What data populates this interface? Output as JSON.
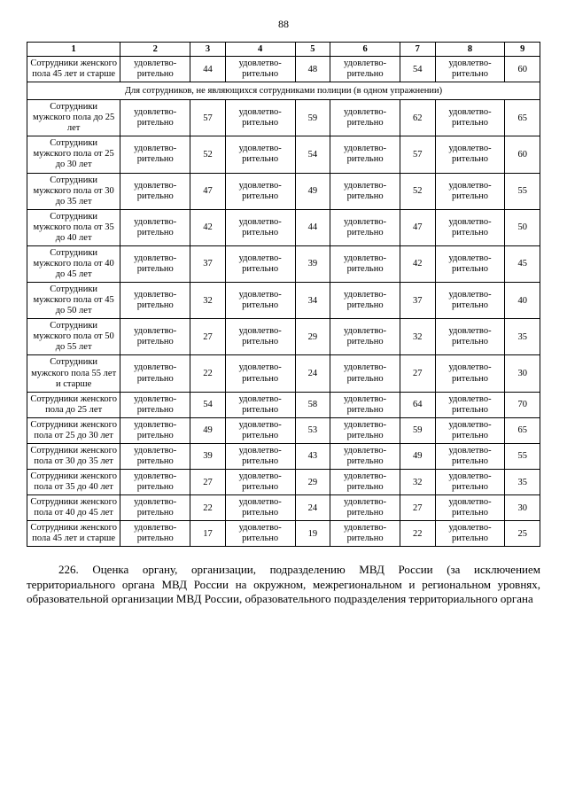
{
  "page_number": "88",
  "table": {
    "headers": [
      "1",
      "2",
      "3",
      "4",
      "5",
      "6",
      "7",
      "8",
      "9"
    ],
    "rating_word": "удовлетво-\nрительно",
    "top_row": {
      "category": "Сотрудники женского пола 45 лет и старше",
      "vals": [
        "44",
        "48",
        "54",
        "60"
      ]
    },
    "spanner": "Для сотрудников, не являющихся сотрудниками полиции (в одном упражнении)",
    "rows": [
      {
        "category": "Сотрудники мужского пола до 25 лет",
        "vals": [
          "57",
          "59",
          "62",
          "65"
        ]
      },
      {
        "category": "Сотрудники мужского пола от 25 до 30 лет",
        "vals": [
          "52",
          "54",
          "57",
          "60"
        ]
      },
      {
        "category": "Сотрудники мужского пола от 30 до 35 лет",
        "vals": [
          "47",
          "49",
          "52",
          "55"
        ]
      },
      {
        "category": "Сотрудники мужского пола от 35 до 40 лет",
        "vals": [
          "42",
          "44",
          "47",
          "50"
        ]
      },
      {
        "category": "Сотрудники мужского пола от 40 до 45 лет",
        "vals": [
          "37",
          "39",
          "42",
          "45"
        ]
      },
      {
        "category": "Сотрудники мужского пола от 45 до 50 лет",
        "vals": [
          "32",
          "34",
          "37",
          "40"
        ]
      },
      {
        "category": "Сотрудники мужского пола от 50 до 55 лет",
        "vals": [
          "27",
          "29",
          "32",
          "35"
        ]
      },
      {
        "category": "Сотрудники мужского пола 55 лет и старше",
        "vals": [
          "22",
          "24",
          "27",
          "30"
        ]
      },
      {
        "category": "Сотрудники женского пола до 25 лет",
        "vals": [
          "54",
          "58",
          "64",
          "70"
        ]
      },
      {
        "category": "Сотрудники женского пола от 25 до 30 лет",
        "vals": [
          "49",
          "53",
          "59",
          "65"
        ]
      },
      {
        "category": "Сотрудники женского пола от 30 до 35 лет",
        "vals": [
          "39",
          "43",
          "49",
          "55"
        ]
      },
      {
        "category": "Сотрудники женского пола от 35 до 40 лет",
        "vals": [
          "27",
          "29",
          "32",
          "35"
        ]
      },
      {
        "category": "Сотрудники женского пола от 40 до 45 лет",
        "vals": [
          "22",
          "24",
          "27",
          "30"
        ]
      },
      {
        "category": "Сотрудники женского пола 45 лет и старше",
        "vals": [
          "17",
          "19",
          "22",
          "25"
        ]
      }
    ],
    "col_widths": [
      "16%",
      "12%",
      "6%",
      "12%",
      "6%",
      "12%",
      "6%",
      "12%",
      "6%"
    ]
  },
  "paragraph": "226. Оценка органу, организации, подразделению МВД России (за исключением территориального органа МВД России на окружном, межрегиональном и региональном уровнях, образовательной организации МВД России, образовательного подразделения территориального органа"
}
